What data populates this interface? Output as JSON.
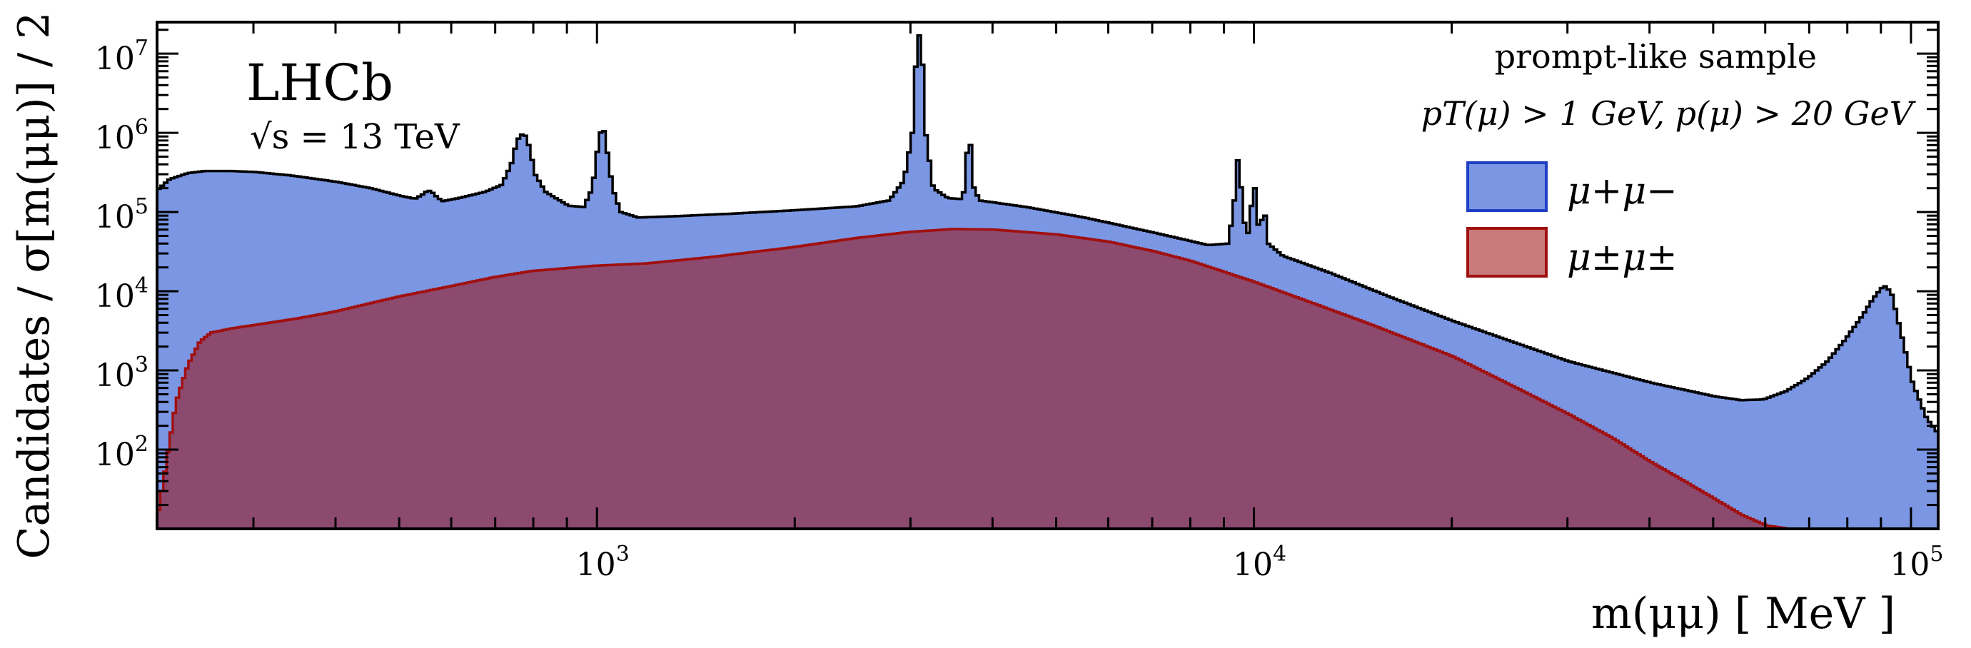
{
  "chart_data": {
    "type": "area",
    "experiment": "LHCb",
    "energy_label": "√s = 13 TeV",
    "sample_label": "prompt-like sample",
    "cuts_label": "pT(μ) > 1 GeV, p(μ) > 20 GeV",
    "xlabel": "m(μμ)  [ MeV ]",
    "ylabel": "Candidates / σ[m(μμ)] / 2",
    "xscale": "log",
    "yscale": "log",
    "xlim": [
      214,
      110000
    ],
    "ylim": [
      10,
      25000000
    ],
    "x_ticks": [
      {
        "value": 1000,
        "label": "10",
        "exp": "3"
      },
      {
        "value": 10000,
        "label": "10",
        "exp": "4"
      },
      {
        "value": 100000,
        "label": "10",
        "exp": "5"
      }
    ],
    "y_ticks": [
      {
        "value": 100,
        "label": "10",
        "exp": "2"
      },
      {
        "value": 1000,
        "label": "10",
        "exp": "3"
      },
      {
        "value": 10000,
        "label": "10",
        "exp": "4"
      },
      {
        "value": 100000,
        "label": "10",
        "exp": "5"
      },
      {
        "value": 1000000,
        "label": "10",
        "exp": "6"
      },
      {
        "value": 10000000,
        "label": "10",
        "exp": "7"
      }
    ],
    "legend_position": "top-right",
    "series": [
      {
        "name": "μ+μ−",
        "fill": "#7b96e3",
        "edge": "#000000",
        "legend_edge": "#1f3fc4",
        "points": [
          [
            214,
            180000
          ],
          [
            225,
            260000
          ],
          [
            240,
            310000
          ],
          [
            255,
            330000
          ],
          [
            275,
            330000
          ],
          [
            300,
            320000
          ],
          [
            340,
            290000
          ],
          [
            400,
            240000
          ],
          [
            450,
            200000
          ],
          [
            500,
            160000
          ],
          [
            530,
            145000
          ],
          [
            545,
            165000
          ],
          [
            555,
            185000
          ],
          [
            565,
            160000
          ],
          [
            580,
            135000
          ],
          [
            620,
            150000
          ],
          [
            680,
            180000
          ],
          [
            720,
            220000
          ],
          [
            745,
            400000
          ],
          [
            760,
            800000
          ],
          [
            772,
            950000
          ],
          [
            785,
            650000
          ],
          [
            800,
            300000
          ],
          [
            830,
            180000
          ],
          [
            900,
            120000
          ],
          [
            960,
            115000
          ],
          [
            990,
            200000
          ],
          [
            1010,
            700000
          ],
          [
            1020,
            1050000
          ],
          [
            1030,
            600000
          ],
          [
            1050,
            200000
          ],
          [
            1080,
            100000
          ],
          [
            1150,
            85000
          ],
          [
            1300,
            88000
          ],
          [
            1600,
            95000
          ],
          [
            2000,
            105000
          ],
          [
            2500,
            118000
          ],
          [
            2800,
            140000
          ],
          [
            2950,
            250000
          ],
          [
            3050,
            1200000
          ],
          [
            3080,
            10000000
          ],
          [
            3097,
            17000000
          ],
          [
            3115,
            6000000
          ],
          [
            3150,
            900000
          ],
          [
            3230,
            200000
          ],
          [
            3400,
            150000
          ],
          [
            3600,
            145000
          ],
          [
            3660,
            200000
          ],
          [
            3686,
            700000
          ],
          [
            3710,
            220000
          ],
          [
            3800,
            140000
          ],
          [
            4500,
            115000
          ],
          [
            5500,
            85000
          ],
          [
            7000,
            55000
          ],
          [
            8500,
            38000
          ],
          [
            9200,
            40000
          ],
          [
            9400,
            150000
          ],
          [
            9460,
            450000
          ],
          [
            9520,
            150000
          ],
          [
            9700,
            40000
          ],
          [
            9900,
            60000
          ],
          [
            10023,
            200000
          ],
          [
            10100,
            60000
          ],
          [
            10250,
            45000
          ],
          [
            10355,
            90000
          ],
          [
            10450,
            40000
          ],
          [
            11000,
            28000
          ],
          [
            13000,
            17000
          ],
          [
            16000,
            8500
          ],
          [
            20000,
            4200
          ],
          [
            25000,
            2200
          ],
          [
            30000,
            1300
          ],
          [
            40000,
            700
          ],
          [
            50000,
            470
          ],
          [
            55000,
            420
          ],
          [
            60000,
            430
          ],
          [
            65000,
            550
          ],
          [
            70000,
            800
          ],
          [
            75000,
            1300
          ],
          [
            80000,
            2500
          ],
          [
            85000,
            5000
          ],
          [
            88000,
            8000
          ],
          [
            91187,
            11500
          ],
          [
            93000,
            9000
          ],
          [
            96000,
            3000
          ],
          [
            100000,
            700
          ],
          [
            105000,
            250
          ],
          [
            110000,
            150
          ]
        ]
      },
      {
        "name": "μ±μ±",
        "fill": "#8d4a6f",
        "edge": "#a01010",
        "legend_fill": "#c97a7a",
        "legend_edge": "#a01010",
        "points": [
          [
            214,
            10
          ],
          [
            220,
            40
          ],
          [
            230,
            400
          ],
          [
            240,
            1200
          ],
          [
            250,
            2300
          ],
          [
            260,
            3000
          ],
          [
            280,
            3400
          ],
          [
            300,
            3700
          ],
          [
            350,
            4500
          ],
          [
            400,
            5500
          ],
          [
            500,
            8500
          ],
          [
            600,
            11500
          ],
          [
            700,
            15000
          ],
          [
            800,
            18000
          ],
          [
            1000,
            21000
          ],
          [
            1200,
            22500
          ],
          [
            1500,
            27000
          ],
          [
            2000,
            36000
          ],
          [
            2500,
            47000
          ],
          [
            3000,
            56000
          ],
          [
            3500,
            61000
          ],
          [
            4000,
            60000
          ],
          [
            5000,
            52000
          ],
          [
            6000,
            42000
          ],
          [
            7000,
            32000
          ],
          [
            8000,
            24000
          ],
          [
            10000,
            13000
          ],
          [
            12000,
            7500
          ],
          [
            15000,
            3800
          ],
          [
            20000,
            1500
          ],
          [
            25000,
            600
          ],
          [
            30000,
            280
          ],
          [
            35000,
            140
          ],
          [
            40000,
            70
          ],
          [
            45000,
            40
          ],
          [
            50000,
            24
          ],
          [
            55000,
            15
          ],
          [
            60000,
            11
          ],
          [
            65000,
            10
          ]
        ]
      }
    ]
  }
}
